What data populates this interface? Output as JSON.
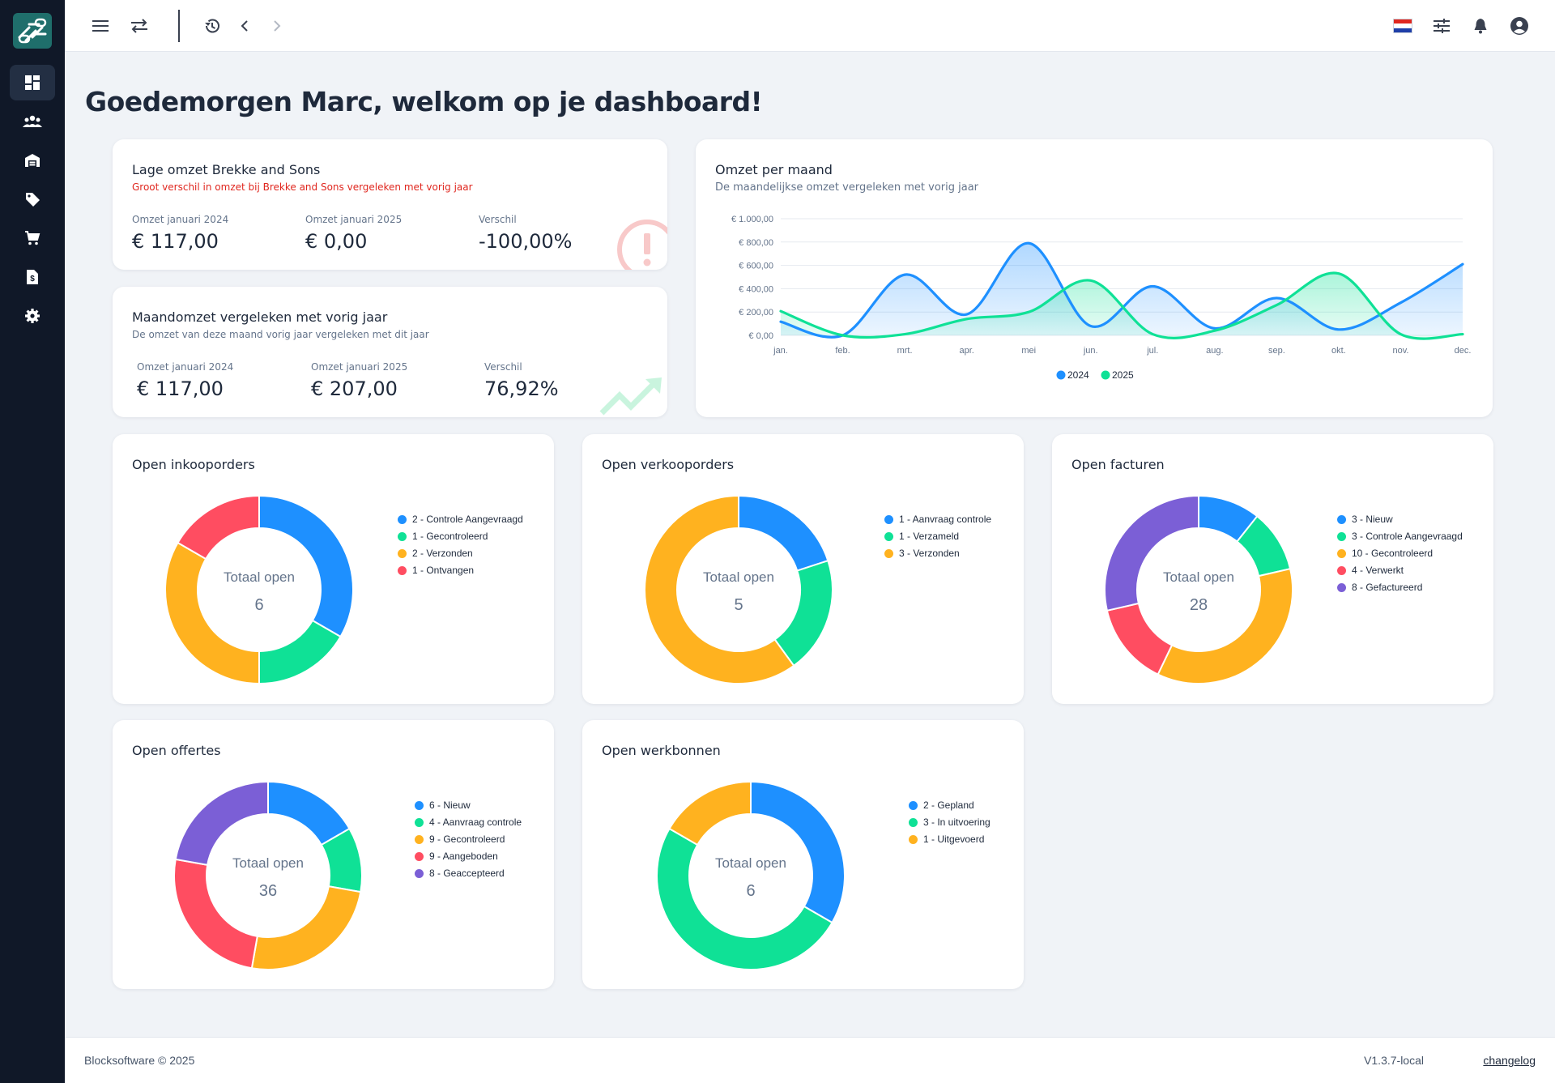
{
  "sidebar": {
    "items": [
      {
        "icon": "dashboard-icon"
      },
      {
        "icon": "people-icon"
      },
      {
        "icon": "warehouse-icon"
      },
      {
        "icon": "tag-icon"
      },
      {
        "icon": "cart-icon"
      },
      {
        "icon": "invoice-icon"
      },
      {
        "icon": "gear-icon"
      }
    ]
  },
  "topbar": {
    "left_icons": [
      "menu-icon",
      "swap-icon",
      "history-icon",
      "back-icon",
      "forward-icon"
    ],
    "right_icons": [
      "flag-nl-icon",
      "tune-icon",
      "bell-icon",
      "account-icon"
    ]
  },
  "page": {
    "title": "Goedemorgen Marc, welkom op je dashboard!"
  },
  "alert_card": {
    "title": "Lage omzet Brekke and Sons",
    "subtitle": "Groot verschil in omzet bij Brekke and Sons vergeleken met vorig jaar",
    "stats": [
      {
        "label": "Omzet januari 2024",
        "value": "€ 117,00"
      },
      {
        "label": "Omzet januari 2025",
        "value": "€ 0,00"
      },
      {
        "label": "Verschil",
        "value": "-100,00%"
      }
    ]
  },
  "month_card": {
    "title": "Maandomzet vergeleken met vorig jaar",
    "subtitle": "De omzet van deze maand vorig jaar vergeleken met dit jaar",
    "stats": [
      {
        "label": "Omzet januari 2024",
        "value": "€ 117,00"
      },
      {
        "label": "Omzet januari 2025",
        "value": "€ 207,00"
      },
      {
        "label": "Verschil",
        "value": "76,92%"
      }
    ]
  },
  "revenue_card": {
    "title": "Omzet per maand",
    "subtitle": "De maandelijkse omzet vergeleken met vorig jaar"
  },
  "donuts": {
    "center_label": "Totaal open",
    "inkooporders": {
      "title": "Open inkooporders",
      "total": "6",
      "legend": [
        "2 - Controle Aangevraagd",
        "1 - Gecontroleerd",
        "2 - Verzonden",
        "1 - Ontvangen"
      ]
    },
    "verkooporders": {
      "title": "Open verkooporders",
      "total": "5",
      "legend": [
        "1 - Aanvraag controle",
        "1 - Verzameld",
        "3 - Verzonden"
      ]
    },
    "facturen": {
      "title": "Open facturen",
      "total": "28",
      "legend": [
        "3 - Nieuw",
        "3 - Controle Aangevraagd",
        "10 - Gecontroleerd",
        "4 - Verwerkt",
        "8 - Gefactureerd"
      ]
    },
    "offertes": {
      "title": "Open offertes",
      "total": "36",
      "legend": [
        "6 - Nieuw",
        "4 - Aanvraag controle",
        "9 - Gecontroleerd",
        "9 - Aangeboden",
        "8 - Geaccepteerd"
      ]
    },
    "werkbonnen": {
      "title": "Open werkbonnen",
      "total": "6",
      "legend": [
        "2 - Gepland",
        "3 - In uitvoering",
        "1 - Uitgevoerd"
      ]
    }
  },
  "colors": {
    "blue": "#1e90ff",
    "green": "#0fe196",
    "orange": "#ffb21f",
    "red": "#ff4d61",
    "purple": "#7b5fd6",
    "alert_red": "#e0271f"
  },
  "chart_data": [
    {
      "type": "line",
      "title": "Omzet per maand",
      "x": [
        "jan.",
        "feb.",
        "mrt.",
        "apr.",
        "mei",
        "jun.",
        "jul.",
        "aug.",
        "sep.",
        "okt.",
        "nov.",
        "dec."
      ],
      "series": [
        {
          "name": "2024",
          "values": [
            117,
            0,
            520,
            180,
            790,
            80,
            420,
            60,
            320,
            50,
            280,
            610
          ]
        },
        {
          "name": "2025",
          "values": [
            207,
            0,
            10,
            140,
            200,
            470,
            10,
            40,
            260,
            530,
            10,
            10
          ]
        }
      ],
      "ylim": [
        0,
        1000
      ],
      "yticks": [
        "€ 0,00",
        "€ 200,00",
        "€ 400,00",
        "€ 600,00",
        "€ 800,00",
        "€ 1.000,00"
      ],
      "grid": true,
      "legend": "bottom"
    },
    {
      "type": "pie",
      "title": "Open inkooporders",
      "categories": [
        "Controle Aangevraagd",
        "Gecontroleerd",
        "Verzonden",
        "Ontvangen"
      ],
      "values": [
        2,
        1,
        2,
        1
      ]
    },
    {
      "type": "pie",
      "title": "Open verkooporders",
      "categories": [
        "Aanvraag controle",
        "Verzameld",
        "Verzonden"
      ],
      "values": [
        1,
        1,
        3
      ]
    },
    {
      "type": "pie",
      "title": "Open facturen",
      "categories": [
        "Nieuw",
        "Controle Aangevraagd",
        "Gecontroleerd",
        "Verwerkt",
        "Gefactureerd"
      ],
      "values": [
        3,
        3,
        10,
        4,
        8
      ]
    },
    {
      "type": "pie",
      "title": "Open offertes",
      "categories": [
        "Nieuw",
        "Aanvraag controle",
        "Gecontroleerd",
        "Aangeboden",
        "Geaccepteerd"
      ],
      "values": [
        6,
        4,
        9,
        9,
        8
      ]
    },
    {
      "type": "pie",
      "title": "Open werkbonnen",
      "categories": [
        "Gepland",
        "In uitvoering",
        "Uitgevoerd"
      ],
      "values": [
        2,
        3,
        1
      ]
    }
  ],
  "footer": {
    "copyright": "Blocksoftware © 2025",
    "version": "V1.3.7-local",
    "changelog": "changelog"
  }
}
